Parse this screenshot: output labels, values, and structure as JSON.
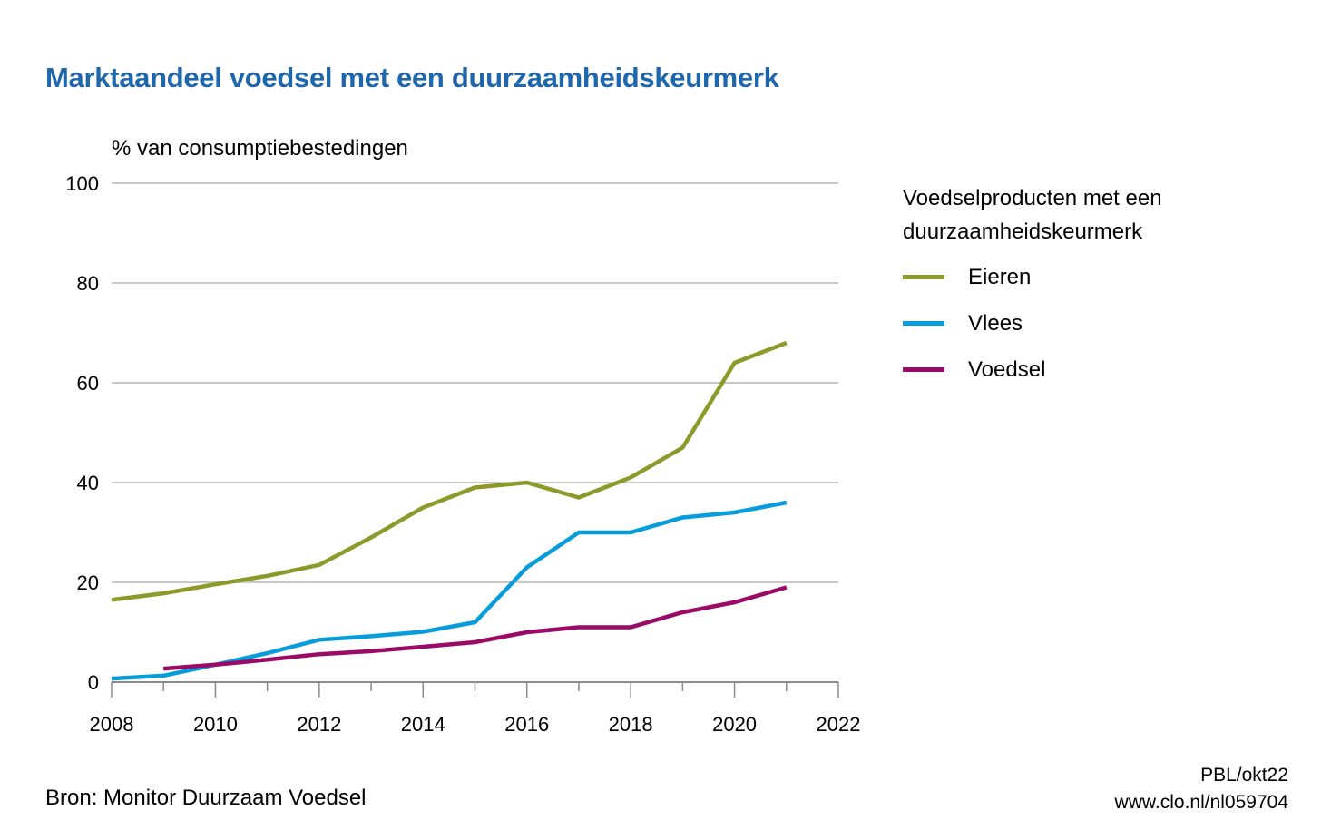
{
  "header": {
    "title": "Marktaandeel voedsel met een duurzaamheidskeurmerk"
  },
  "footer": {
    "source": "Bron: Monitor Duurzaam Voedsel",
    "credit_line1": "PBL/okt22",
    "credit_line2": "www.clo.nl/nl059704"
  },
  "chart_data": {
    "type": "line",
    "title": "Marktaandeel voedsel met een duurzaamheidskeurmerk",
    "xlabel": "",
    "ylabel": "% van consumptiebestedingen",
    "xlim": [
      2008,
      2022
    ],
    "ylim": [
      0,
      100
    ],
    "x_ticks": [
      "2008",
      "2010",
      "2012",
      "2014",
      "2016",
      "2018",
      "2020",
      "2022"
    ],
    "y_ticks": [
      "0",
      "20",
      "40",
      "60",
      "80",
      "100"
    ],
    "grid": "horizontal",
    "legend": {
      "title": [
        "Voedselproducten met een",
        "duurzaamheidskeurmerk"
      ],
      "placement": "right"
    },
    "series": [
      {
        "name": "Eieren",
        "color": "#8c9a2a",
        "x": [
          2008,
          2009,
          2010,
          2011,
          2012,
          2013,
          2014,
          2015,
          2016,
          2017,
          2018,
          2019,
          2020,
          2021
        ],
        "values": [
          16.5,
          17.8,
          19.6,
          21.3,
          23.5,
          29,
          35,
          39,
          40,
          37,
          41,
          47,
          64,
          68
        ]
      },
      {
        "name": "Vlees",
        "color": "#079ddb",
        "x": [
          2008,
          2009,
          2010,
          2011,
          2012,
          2013,
          2014,
          2015,
          2016,
          2017,
          2018,
          2019,
          2020,
          2021
        ],
        "values": [
          0.7,
          1.3,
          3.5,
          5.8,
          8.5,
          9.2,
          10.1,
          12,
          23,
          30,
          30,
          33,
          34,
          36
        ]
      },
      {
        "name": "Voedsel",
        "color": "#9b0a67",
        "x": [
          2009,
          2010,
          2011,
          2012,
          2013,
          2014,
          2015,
          2016,
          2017,
          2018,
          2019,
          2020,
          2021
        ],
        "values": [
          2.7,
          3.5,
          4.5,
          5.6,
          6.2,
          7.1,
          8,
          10,
          11,
          11,
          14,
          16,
          19
        ]
      }
    ]
  }
}
